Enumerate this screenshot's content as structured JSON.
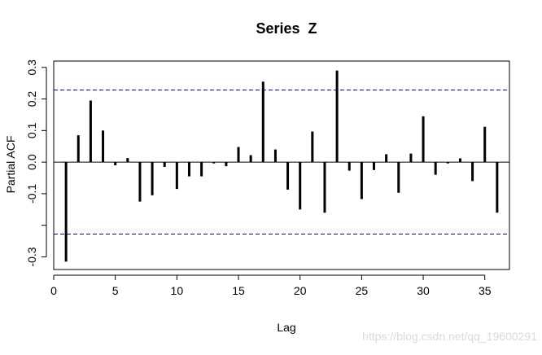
{
  "chart_data": {
    "type": "bar",
    "title": "Series  Z",
    "xlabel": "Lag",
    "ylabel": "Partial ACF",
    "xlim": [
      0,
      37
    ],
    "ylim": [
      -0.34,
      0.32
    ],
    "x_ticks": [
      0,
      5,
      10,
      15,
      20,
      25,
      30,
      35
    ],
    "y_ticks": [
      -0.3,
      -0.1,
      0.0,
      0.1,
      0.2,
      0.3
    ],
    "y_tick_labels": [
      "-0.3",
      "-0.1",
      "0.0",
      "0.1",
      "0.2",
      "0.3"
    ],
    "y_extra_ticks": [
      -0.2
    ],
    "zero_line": 0,
    "confidence_bounds": [
      0.228,
      -0.228
    ],
    "x": [
      1,
      2,
      3,
      4,
      5,
      6,
      7,
      8,
      9,
      10,
      11,
      12,
      13,
      14,
      15,
      16,
      17,
      18,
      19,
      20,
      21,
      22,
      23,
      24,
      25,
      26,
      27,
      28,
      29,
      30,
      31,
      32,
      33,
      34,
      35,
      36
    ],
    "values": [
      -0.315,
      0.085,
      0.195,
      0.1,
      -0.01,
      0.013,
      -0.125,
      -0.105,
      -0.015,
      -0.085,
      -0.045,
      -0.045,
      -0.004,
      -0.013,
      0.048,
      0.022,
      0.255,
      0.04,
      -0.087,
      -0.15,
      0.097,
      -0.16,
      0.29,
      -0.027,
      -0.117,
      -0.025,
      0.025,
      -0.097,
      0.027,
      0.145,
      -0.04,
      -0.004,
      0.012,
      -0.06,
      0.112,
      -0.16
    ],
    "colors": {
      "bars": "#000000",
      "bounds": "#00008b",
      "zero": "#000000",
      "frame": "#000000"
    },
    "grid": false
  },
  "watermark": "https://blog.csdn.net/qq_19600291"
}
